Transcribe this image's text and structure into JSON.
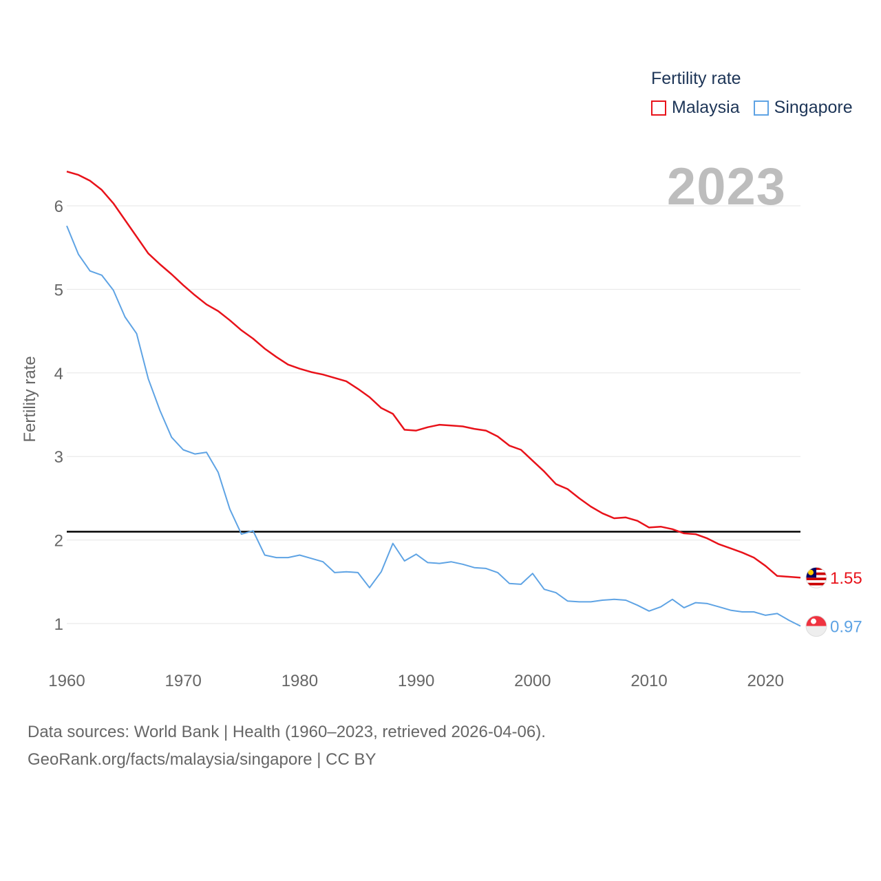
{
  "legend": {
    "title": "Fertility rate",
    "items": [
      {
        "label": "Malaysia",
        "color": "#e8121a"
      },
      {
        "label": "Singapore",
        "color": "#5ea3e4"
      }
    ]
  },
  "year_label": "2023",
  "source": {
    "line1": "Data sources: World Bank | Health (1960–2023, retrieved 2026-04-06).",
    "line2": "GeoRank.org/facts/malaysia/singapore | CC BY"
  },
  "chart_data": {
    "type": "line",
    "title": "",
    "xlabel": "",
    "ylabel": "Fertility rate",
    "xlim": [
      1960,
      2023
    ],
    "ylim": [
      0.5,
      6.5
    ],
    "x_ticks": [
      1960,
      1970,
      1980,
      1990,
      2000,
      2010,
      2020
    ],
    "y_ticks": [
      1,
      2,
      3,
      4,
      5,
      6
    ],
    "grid": true,
    "reference_line": {
      "y": 2.1,
      "color": "#000000"
    },
    "x": [
      1960,
      1961,
      1962,
      1963,
      1964,
      1965,
      1966,
      1967,
      1968,
      1969,
      1970,
      1971,
      1972,
      1973,
      1974,
      1975,
      1976,
      1977,
      1978,
      1979,
      1980,
      1981,
      1982,
      1983,
      1984,
      1985,
      1986,
      1987,
      1988,
      1989,
      1990,
      1991,
      1992,
      1993,
      1994,
      1995,
      1996,
      1997,
      1998,
      1999,
      2000,
      2001,
      2002,
      2003,
      2004,
      2005,
      2006,
      2007,
      2008,
      2009,
      2010,
      2011,
      2012,
      2013,
      2014,
      2015,
      2016,
      2017,
      2018,
      2019,
      2020,
      2021,
      2022,
      2023
    ],
    "series": [
      {
        "name": "Malaysia",
        "color": "#e8121a",
        "end_label": "1.55",
        "values": [
          6.41,
          6.37,
          6.3,
          6.19,
          6.03,
          5.83,
          5.63,
          5.43,
          5.3,
          5.18,
          5.05,
          4.93,
          4.82,
          4.74,
          4.63,
          4.51,
          4.41,
          4.29,
          4.19,
          4.1,
          4.05,
          4.01,
          3.98,
          3.94,
          3.9,
          3.81,
          3.71,
          3.58,
          3.51,
          3.32,
          3.31,
          3.35,
          3.38,
          3.37,
          3.36,
          3.33,
          3.31,
          3.24,
          3.13,
          3.08,
          2.95,
          2.82,
          2.67,
          2.61,
          2.5,
          2.4,
          2.32,
          2.26,
          2.27,
          2.23,
          2.15,
          2.16,
          2.13,
          2.08,
          2.07,
          2.02,
          1.95,
          1.9,
          1.85,
          1.79,
          1.69,
          1.57,
          1.56,
          1.55
        ]
      },
      {
        "name": "Singapore",
        "color": "#5ea3e4",
        "end_label": "0.97",
        "values": [
          5.76,
          5.42,
          5.22,
          5.17,
          4.99,
          4.67,
          4.47,
          3.93,
          3.55,
          3.23,
          3.08,
          3.03,
          3.05,
          2.81,
          2.37,
          2.07,
          2.11,
          1.82,
          1.79,
          1.79,
          1.82,
          1.78,
          1.74,
          1.61,
          1.62,
          1.61,
          1.43,
          1.62,
          1.96,
          1.75,
          1.83,
          1.73,
          1.72,
          1.74,
          1.71,
          1.67,
          1.66,
          1.61,
          1.48,
          1.47,
          1.6,
          1.41,
          1.37,
          1.27,
          1.26,
          1.26,
          1.28,
          1.29,
          1.28,
          1.22,
          1.15,
          1.2,
          1.29,
          1.19,
          1.25,
          1.24,
          1.2,
          1.16,
          1.14,
          1.14,
          1.1,
          1.12,
          1.04,
          0.97
        ]
      }
    ]
  }
}
